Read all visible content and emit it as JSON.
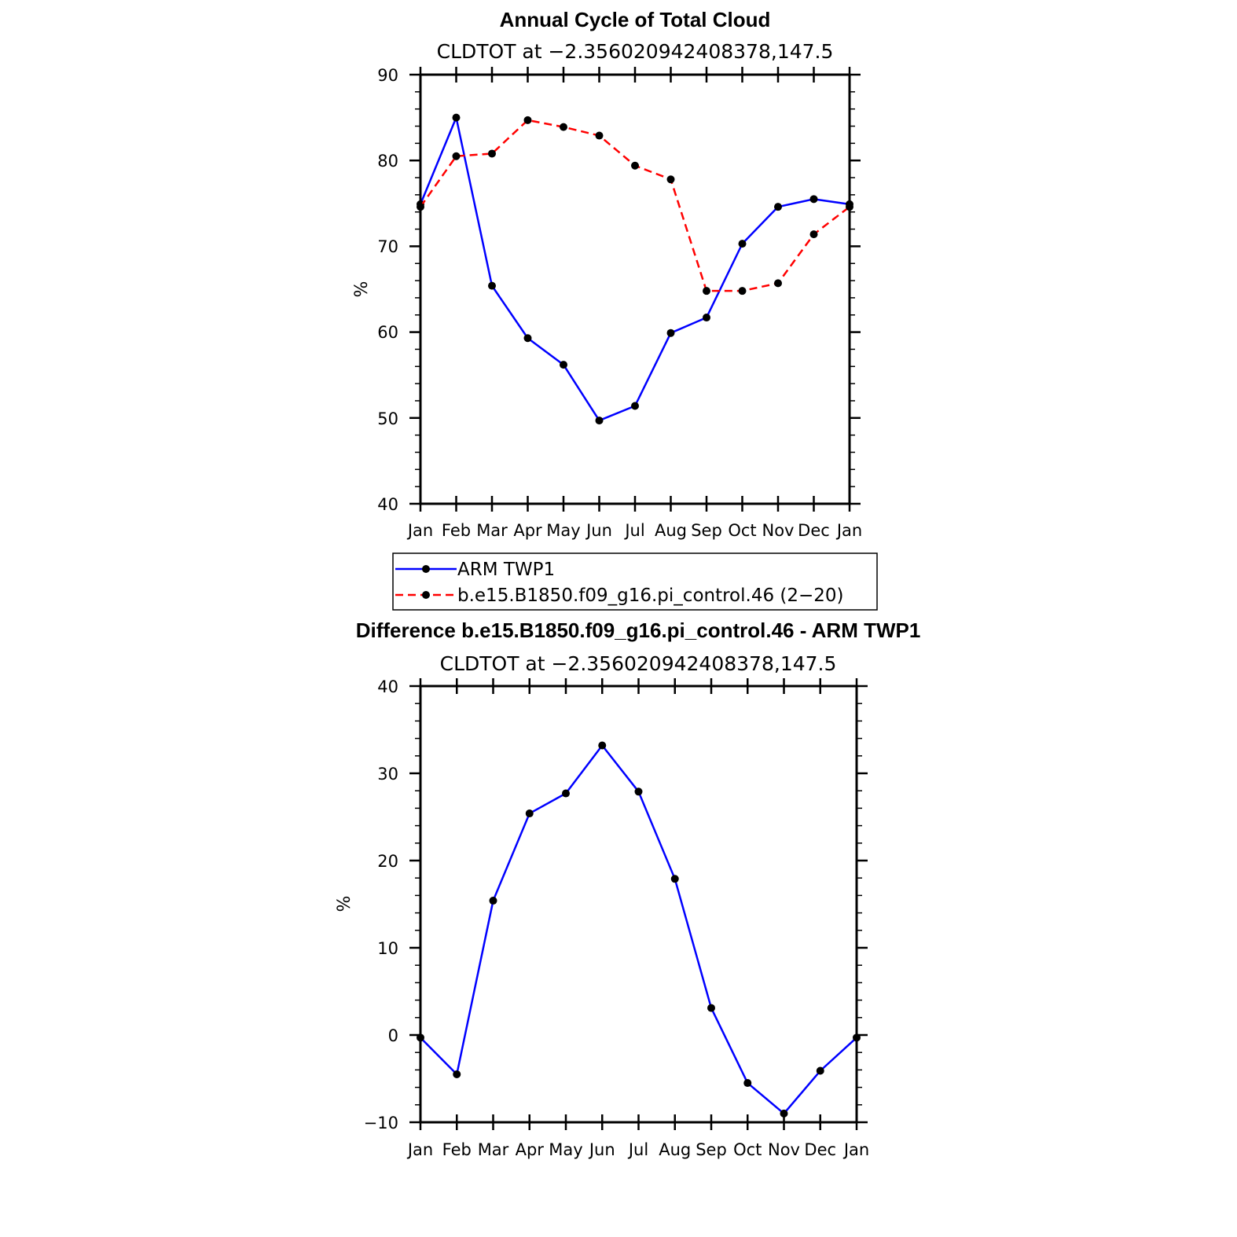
{
  "chart_data": [
    {
      "type": "line",
      "title": "Annual Cycle of Total Cloud",
      "subtitle": "CLDTOT at −2.356020942408378,147.5",
      "xlabel": "",
      "ylabel": "%",
      "categories": [
        "Jan",
        "Feb",
        "Mar",
        "Apr",
        "May",
        "Jun",
        "Jul",
        "Aug",
        "Sep",
        "Oct",
        "Nov",
        "Dec",
        "Jan"
      ],
      "yticks": [
        "90",
        "80",
        "70",
        "60",
        "50",
        "40"
      ],
      "ylim": [
        40,
        90
      ],
      "series": [
        {
          "name": "ARM TWP1",
          "color": "#0000ff",
          "dash": "solid",
          "values": [
            74.9,
            85.0,
            65.4,
            59.3,
            56.2,
            49.7,
            51.4,
            59.9,
            61.7,
            70.3,
            74.6,
            75.5,
            74.9
          ]
        },
        {
          "name": "b.e15.B1850.f09_g16.pi_control.46 (2−20)",
          "color": "#ff0000",
          "dash": "dashed",
          "values": [
            74.6,
            80.5,
            80.8,
            84.7,
            83.9,
            82.9,
            79.4,
            77.8,
            64.8,
            64.8,
            65.7,
            71.4,
            74.6
          ]
        }
      ]
    },
    {
      "type": "line",
      "title": "Difference b.e15.B1850.f09_g16.pi_control.46 - ARM TWP1",
      "subtitle": "CLDTOT at −2.356020942408378,147.5",
      "xlabel": "",
      "ylabel": "%",
      "categories": [
        "Jan",
        "Feb",
        "Mar",
        "Apr",
        "May",
        "Jun",
        "Jul",
        "Aug",
        "Sep",
        "Oct",
        "Nov",
        "Dec",
        "Jan"
      ],
      "yticks": [
        "40",
        "30",
        "20",
        "10",
        "0",
        "−10"
      ],
      "ylim": [
        -10,
        40
      ],
      "series": [
        {
          "name": "Difference",
          "color": "#0000ff",
          "dash": "solid",
          "values": [
            -0.3,
            -4.5,
            15.4,
            25.4,
            27.7,
            33.2,
            27.9,
            17.9,
            3.1,
            -5.5,
            -9.0,
            -4.1,
            -0.3
          ]
        }
      ]
    }
  ]
}
